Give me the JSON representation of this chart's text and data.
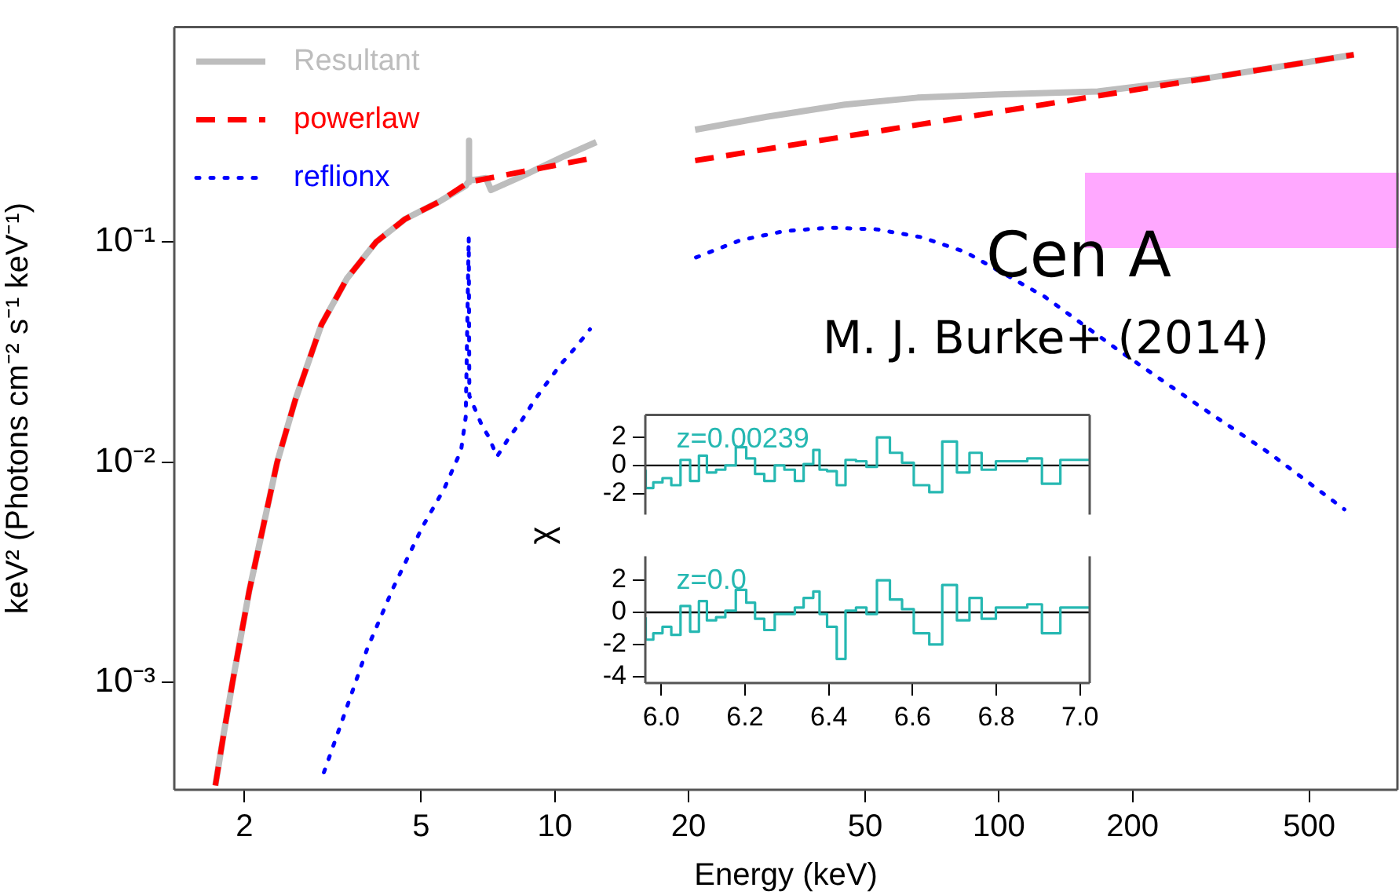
{
  "chart_data": [
    {
      "type": "line",
      "xlabel": "Energy (keV)",
      "ylabel": "keV² (Photons cm⁻² s⁻¹ keV⁻¹)",
      "annotations": [
        "Cen A",
        "M. J. Burke+ (2014)"
      ],
      "log": "xy",
      "legend": "top left",
      "xlim": [
        1.39,
        790
      ],
      "ylim": [
        0.000325,
        0.946
      ],
      "xticks": [
        2,
        5,
        10,
        20,
        50,
        100,
        200,
        500
      ],
      "yticks": [
        {
          "value": 0.001,
          "label": "10⁻³"
        },
        {
          "value": 0.01,
          "label": "10⁻²"
        },
        {
          "value": 0.1,
          "label": "10⁻¹"
        }
      ],
      "series": [
        {
          "name": "Resultant",
          "color": "#bdbdbd",
          "line_style": "solid",
          "x": [
            1.72,
            1.8,
            1.88,
            1.95,
            2.05,
            2.2,
            2.37,
            2.6,
            2.98,
            3.4,
            3.96,
            4.6,
            5.48,
            6.3,
            6.38,
            6.4,
            6.42,
            7.0,
            7.18,
            8.5,
            10.5,
            12.4,
            16,
            20.7,
            30,
            45,
            65.6,
            100,
            167,
            300,
            630
          ],
          "values": [
            0.00034,
            0.0006,
            0.001,
            0.0015,
            0.0026,
            0.005,
            0.01,
            0.019,
            0.042,
            0.068,
            0.1,
            0.127,
            0.152,
            0.18,
            0.187,
            0.288,
            0.19,
            0.195,
            0.172,
            0.2,
            0.245,
            0.284,
            null,
            0.323,
            0.37,
            0.42,
            0.452,
            0.468,
            0.482,
            0.557,
            0.708
          ]
        },
        {
          "name": "powerlaw",
          "color": "#ff0000",
          "line_style": "dashed",
          "x": [
            1.72,
            1.8,
            1.88,
            1.95,
            2.05,
            2.2,
            2.37,
            2.6,
            2.98,
            3.4,
            3.96,
            4.6,
            5.48,
            6.4,
            12.4,
            16,
            20.7,
            100,
            630
          ],
          "values": [
            0.00034,
            0.0006,
            0.001,
            0.0015,
            0.0026,
            0.005,
            0.01,
            0.019,
            0.042,
            0.068,
            0.1,
            0.127,
            0.152,
            0.187,
            0.242,
            null,
            0.234,
            0.39,
            0.708
          ]
        },
        {
          "name": "reflionx",
          "color": "#0000ff",
          "line_style": "dotted",
          "x": [
            3.02,
            3.37,
            3.78,
            4.32,
            5.02,
            5.64,
            6.15,
            6.3,
            6.4,
            6.42,
            6.84,
            7.1,
            7.41,
            7.9,
            8.45,
            9.0,
            9.6,
            10.3,
            11.2,
            12.0,
            16,
            20.8,
            26.1,
            32.9,
            41.7,
            53.1,
            67,
            84.2,
            126.8,
            186,
            276,
            409,
            600
          ],
          "values": [
            0.00039,
            0.00073,
            0.00142,
            0.00267,
            0.00503,
            0.0076,
            0.0113,
            0.016,
            0.105,
            0.02,
            0.0148,
            0.013,
            0.0106,
            0.013,
            0.0156,
            0.0191,
            0.0229,
            0.0277,
            0.0336,
            0.0401,
            null,
            0.085,
            0.1016,
            0.112,
            0.116,
            0.114,
            0.105,
            0.0898,
            0.0564,
            0.0322,
            0.0186,
            0.0109,
            0.0061
          ]
        }
      ]
    },
    {
      "type": "step",
      "tick_labels": "y",
      "xlim": [
        5.962,
        7.023
      ],
      "ylim": [
        -3.5,
        3.6
      ],
      "yticks": [
        -2,
        0,
        2
      ],
      "ref_lines": [
        {
          "axis": "y",
          "value": 0,
          "color": "#000000"
        }
      ],
      "series": [
        {
          "name": "z=0.00239",
          "color": "#26b8b2",
          "x": [
            5.963,
            5.981,
            6.003,
            6.024,
            6.046,
            6.069,
            6.09,
            6.109,
            6.131,
            6.153,
            6.178,
            6.203,
            6.224,
            6.246,
            6.271,
            6.294,
            6.319,
            6.34,
            6.363,
            6.378,
            6.396,
            6.419,
            6.44,
            6.465,
            6.49,
            6.515,
            6.546,
            6.575,
            6.603,
            6.64,
            6.671,
            6.706,
            6.736,
            6.765,
            6.799,
            6.874,
            6.909,
            6.953,
            7.0,
            7.023
          ],
          "values": [
            -0.3,
            -1.6,
            -1.2,
            -0.9,
            -1.4,
            0.4,
            -1.1,
            0.7,
            -0.5,
            -0.3,
            0,
            1.3,
            0.5,
            -0.6,
            -1.1,
            0,
            -0.3,
            -1.1,
            0.1,
            1.1,
            -0.3,
            -0.4,
            -1.4,
            0.4,
            0.3,
            -0.1,
            2.0,
            0.9,
            0.2,
            -1.4,
            -1.9,
            1.7,
            -0.5,
            0.9,
            -0.3,
            0.3,
            0.5,
            -1.3,
            0.4,
            0.4
          ]
        }
      ]
    },
    {
      "type": "step",
      "ylabel": "χ",
      "xlim": [
        5.962,
        7.023
      ],
      "ylim": [
        -4.4,
        3.5
      ],
      "yticks": [
        -4,
        -2,
        0,
        2
      ],
      "xticks": [
        {
          "value": 6,
          "label": "6.0"
        },
        {
          "value": 6.2,
          "label": "6.2"
        },
        {
          "value": 6.4,
          "label": "6.4"
        },
        {
          "value": 6.6,
          "label": "6.6"
        },
        {
          "value": 6.8,
          "label": "6.8"
        },
        {
          "value": 7,
          "label": "7.0"
        }
      ],
      "ref_lines": [
        {
          "axis": "y",
          "value": 0,
          "color": "#000000"
        }
      ],
      "series": [
        {
          "name": "z=0.0",
          "color": "#26b8b2",
          "x": [
            5.963,
            5.981,
            6.003,
            6.024,
            6.046,
            6.069,
            6.09,
            6.109,
            6.131,
            6.153,
            6.178,
            6.203,
            6.224,
            6.246,
            6.271,
            6.294,
            6.319,
            6.34,
            6.363,
            6.378,
            6.396,
            6.419,
            6.44,
            6.465,
            6.49,
            6.515,
            6.546,
            6.575,
            6.603,
            6.64,
            6.671,
            6.706,
            6.736,
            6.765,
            6.799,
            6.874,
            6.909,
            6.953,
            7.0,
            7.023
          ],
          "values": [
            -0.3,
            -1.7,
            -1.3,
            -0.9,
            -1.4,
            0.4,
            -1.2,
            0.7,
            -0.5,
            -0.3,
            0.1,
            1.4,
            0.6,
            -0.4,
            -1.1,
            -0.1,
            -0.1,
            0.3,
            0.9,
            1.3,
            -0.1,
            -0.9,
            -2.9,
            0.1,
            0.3,
            -0.1,
            2.0,
            0.8,
            0.2,
            -1.3,
            -2.0,
            1.7,
            -0.5,
            0.9,
            -0.4,
            0.3,
            0.5,
            -1.3,
            0.3,
            0.3
          ]
        }
      ]
    }
  ]
}
